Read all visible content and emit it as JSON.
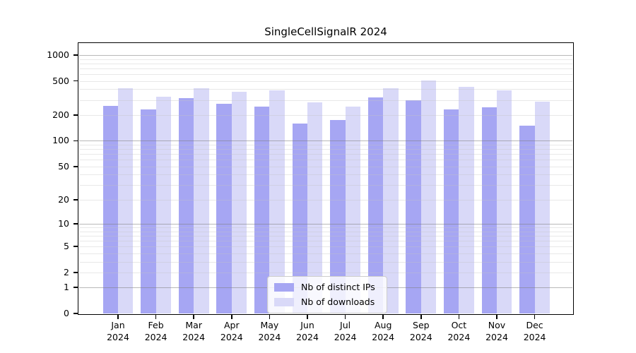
{
  "chart_data": {
    "type": "bar",
    "title": "SingleCellSignalR 2024",
    "categories": [
      "Jan",
      "Feb",
      "Mar",
      "Apr",
      "May",
      "Jun",
      "Jul",
      "Aug",
      "Sep",
      "Oct",
      "Nov",
      "Dec"
    ],
    "x_year_label": "2024",
    "series": [
      {
        "name": "Nb of distinct IPs",
        "color": "#a6a6f3",
        "values": [
          255,
          235,
          315,
          270,
          250,
          160,
          175,
          320,
          300,
          235,
          245,
          150
        ]
      },
      {
        "name": "Nb of downloads",
        "color": "#d9d9f8",
        "values": [
          410,
          330,
          410,
          375,
          385,
          280,
          250,
          410,
          510,
          425,
          385,
          285
        ]
      }
    ],
    "xlabel": "",
    "ylabel": "",
    "y_scale": "log10(1+x)",
    "y_ticks": [
      0,
      1,
      2,
      5,
      10,
      20,
      50,
      100,
      200,
      500,
      1000
    ],
    "ylim": [
      0,
      1350
    ],
    "grid": "horizontal, major at powers of 10 and minor at 2-9 multiples, drawn over bars",
    "legend_position": "lower center",
    "colors": {
      "background": "#ffffff",
      "spine": "#000000",
      "major_grid": "#b9b9b9",
      "minor_grid": "#e0e0e0",
      "text": "#000000"
    }
  }
}
